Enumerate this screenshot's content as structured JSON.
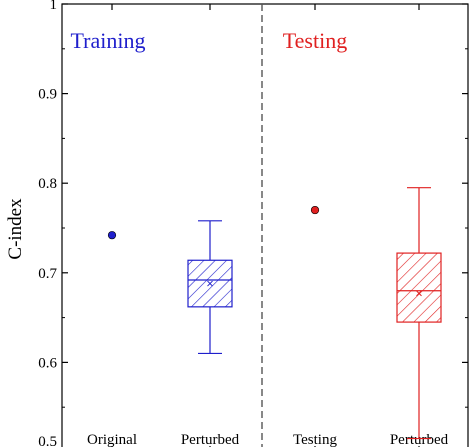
{
  "chart_data": {
    "type": "box",
    "ylabel": "C-index",
    "ylim": [
      0.5,
      1.0
    ],
    "yticks": [
      "0.5",
      "0.6",
      "0.7",
      "0.8",
      "0.9",
      "1"
    ],
    "categories": [
      "Original",
      "Perturbed",
      "Testing",
      "Perturbed"
    ],
    "panels": [
      {
        "title": "Training",
        "color": "#1f1fcc",
        "point": {
          "category": "Original",
          "value": 0.742
        },
        "box": {
          "category": "Perturbed",
          "whisker_low": 0.61,
          "q1": 0.662,
          "median": 0.692,
          "mean": 0.688,
          "q3": 0.714,
          "whisker_high": 0.758
        }
      },
      {
        "title": "Testing",
        "color": "#e02020",
        "point": {
          "category": "Testing",
          "value": 0.77
        },
        "box": {
          "category": "Perturbed",
          "whisker_low": 0.515,
          "q1": 0.645,
          "median": 0.68,
          "mean": 0.677,
          "q3": 0.722,
          "whisker_high": 0.795
        }
      }
    ],
    "divider": "dashed vertical line between panels",
    "grid": false
  }
}
